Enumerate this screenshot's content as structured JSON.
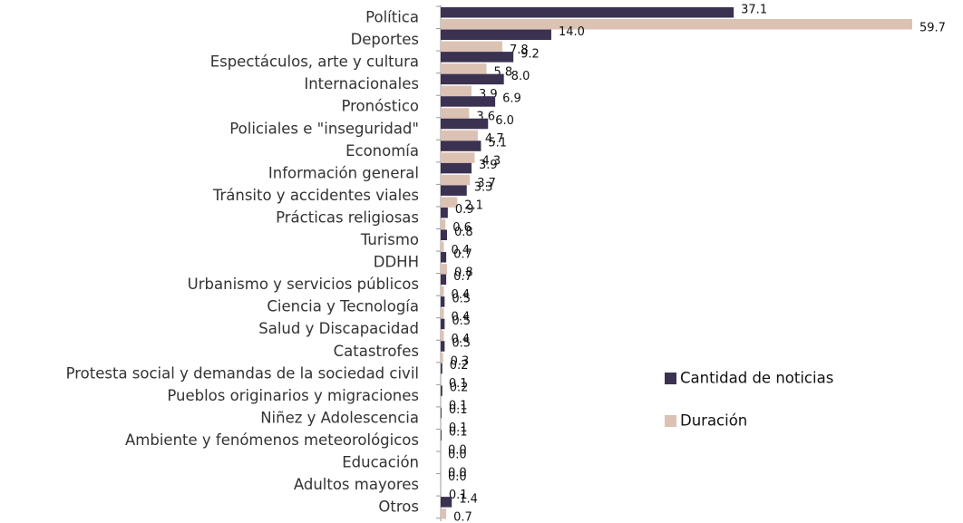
{
  "chart_data": {
    "type": "barh",
    "categories": [
      "Política",
      "Deportes",
      "Espectáculos, arte y cultura",
      "Internacionales",
      "Pronóstico",
      "Policiales e \"inseguridad\"",
      "Economía",
      "Información general",
      "Tránsito y accidentes viales",
      "Prácticas religiosas",
      "Turismo",
      "DDHH",
      "Urbanismo y servicios públicos",
      "Ciencia y Tecnología",
      "Salud y Discapacidad",
      "Catastrofes",
      "Protesta social y demandas de la sociedad civil",
      "Pueblos originarios y migraciones",
      "Niñez y Adolescencia",
      "Ambiente y fenómenos meteorológicos",
      "Educación",
      "Adultos mayores",
      "Otros"
    ],
    "series": [
      {
        "name": "Cantidad de noticias",
        "color": "#3b3150",
        "values": [
          37.1,
          14.0,
          9.2,
          8.0,
          6.9,
          6.0,
          5.1,
          3.9,
          3.3,
          0.9,
          0.8,
          0.7,
          0.7,
          0.5,
          0.5,
          0.5,
          0.2,
          0.2,
          0.1,
          0.1,
          0.0,
          0.0,
          1.4
        ],
        "value_labels": [
          "37.1",
          "14.0",
          "9.2",
          "8.0",
          "6.9",
          "6.0",
          "5.1",
          "3.9",
          "3.3",
          "0.9",
          "0.8",
          "0.7",
          "0.7",
          "0.5",
          "0.5",
          "0.5",
          "0.2",
          "0.2",
          "0.1",
          "0.1",
          "0.0",
          "0.0",
          "1.4"
        ]
      },
      {
        "name": "Duración",
        "color": "#dcc2b3",
        "values": [
          59.7,
          7.8,
          5.8,
          3.9,
          3.6,
          4.7,
          4.3,
          3.7,
          2.1,
          0.6,
          0.4,
          0.8,
          0.4,
          0.4,
          0.4,
          0.3,
          0.1,
          0.1,
          0.1,
          0.0,
          0.0,
          0.1,
          0.7
        ],
        "value_labels": [
          "59.7",
          "7.8",
          "5.8",
          "3.9",
          "3.6",
          "4.7",
          "4.3",
          "3.7",
          "2.1",
          "0.6",
          "0.4",
          "0.8",
          "0.4",
          "0.4",
          "0.4",
          "0.3",
          "0.1",
          "0.1",
          "0.1",
          "0.0",
          "0.0",
          "0.1",
          "0.7"
        ]
      }
    ],
    "legend": "right"
  }
}
